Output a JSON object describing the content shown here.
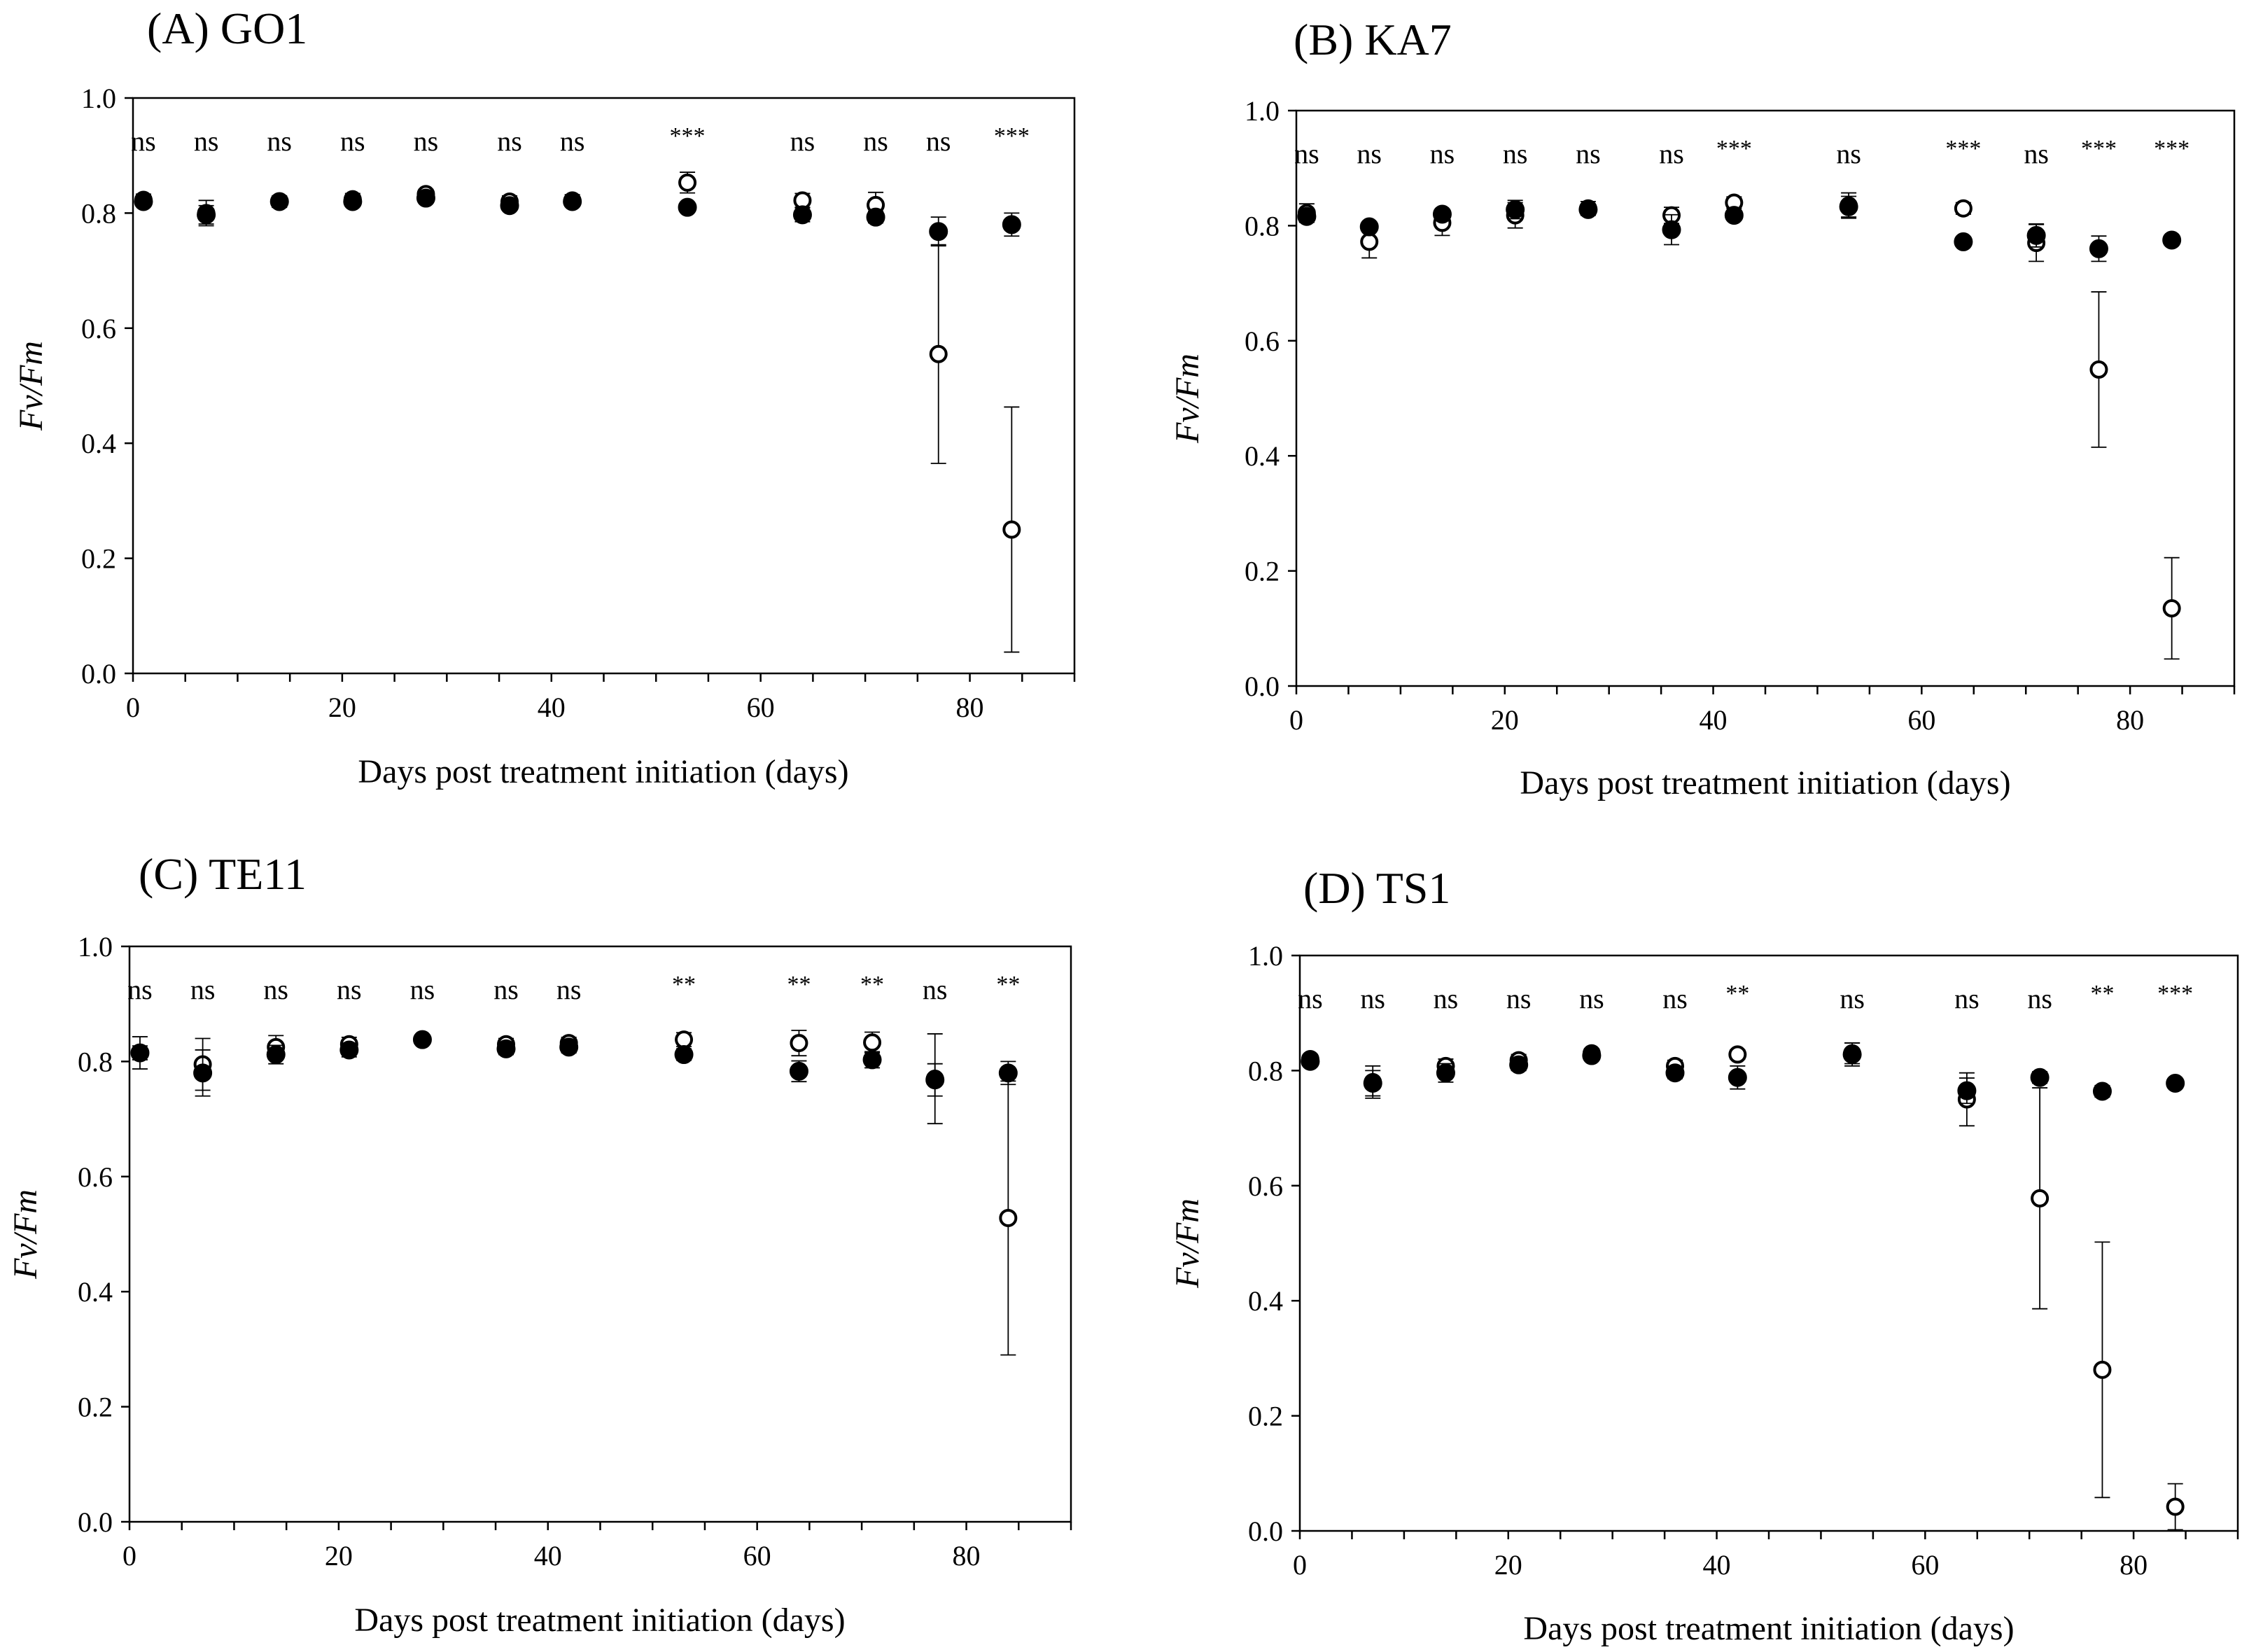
{
  "figure": {
    "x_axis_label": "Days post treatment initiation (days)",
    "y_axis_label": "Fv/Fm",
    "colors": {
      "axis": "#000000",
      "filled_marker": "#000000",
      "open_marker_fill": "#ffffff"
    }
  },
  "chart_data": [
    {
      "type": "scatter",
      "title": "(A) GO1",
      "xlabel": "Days post treatment initiation (days)",
      "ylabel": "Fv/Fm",
      "xlim": [
        0,
        90
      ],
      "ylim": [
        0,
        1
      ],
      "x_ticks": [
        "0",
        "20",
        "40",
        "60",
        "80"
      ],
      "y_ticks": [
        "0.0",
        "0.2",
        "0.4",
        "0.6",
        "0.8",
        "1.0"
      ],
      "x": [
        1,
        7,
        14,
        21,
        28,
        36,
        42,
        53,
        64,
        71,
        77,
        84
      ],
      "significance": [
        "ns",
        "ns",
        "ns",
        "ns",
        "ns",
        "ns",
        "ns",
        "***",
        "ns",
        "ns",
        "ns",
        "***"
      ],
      "series": [
        {
          "name": "open",
          "marker": "open-circle",
          "values": [
            0.823,
            0.8,
            0.82,
            0.824,
            0.833,
            0.82,
            0.822,
            0.853,
            0.822,
            0.814,
            0.555,
            0.25
          ],
          "errors": [
            0.01,
            0.022,
            0.01,
            0.01,
            0.008,
            0.01,
            0.01,
            0.018,
            0.012,
            0.022,
            0.19,
            0.213
          ]
        },
        {
          "name": "filled",
          "marker": "filled-circle",
          "values": [
            0.82,
            0.797,
            0.82,
            0.82,
            0.826,
            0.813,
            0.82,
            0.81,
            0.797,
            0.793,
            0.768,
            0.78
          ],
          "errors": [
            0.006,
            0.016,
            0.006,
            0.006,
            0.006,
            0.008,
            0.006,
            0.006,
            0.012,
            0.01,
            0.025,
            0.02
          ]
        }
      ]
    },
    {
      "type": "scatter",
      "title": "(B) KA7",
      "xlabel": "Days post treatment initiation (days)",
      "ylabel": "Fv/Fm",
      "xlim": [
        0,
        90
      ],
      "ylim": [
        0,
        1
      ],
      "x_ticks": [
        "0",
        "20",
        "40",
        "60",
        "80"
      ],
      "y_ticks": [
        "0.0",
        "0.2",
        "0.4",
        "0.6",
        "0.8",
        "1.0"
      ],
      "x": [
        1,
        7,
        14,
        21,
        28,
        36,
        42,
        53,
        64,
        71,
        77,
        84
      ],
      "significance": [
        "ns",
        "ns",
        "ns",
        "ns",
        "ns",
        "ns",
        "***",
        "ns",
        "***",
        "ns",
        "***",
        "***"
      ],
      "series": [
        {
          "name": "open",
          "marker": "open-circle",
          "values": [
            0.822,
            0.772,
            0.805,
            0.818,
            0.83,
            0.818,
            0.84,
            0.835,
            0.83,
            0.77,
            0.55,
            0.135
          ],
          "errors": [
            0.016,
            0.028,
            0.022,
            0.022,
            0.012,
            0.014,
            0.01,
            0.022,
            0.01,
            0.032,
            0.135,
            0.088
          ]
        },
        {
          "name": "filled",
          "marker": "filled-circle",
          "values": [
            0.816,
            0.798,
            0.82,
            0.828,
            0.828,
            0.793,
            0.818,
            0.833,
            0.772,
            0.783,
            0.76,
            0.775
          ],
          "errors": [
            0.01,
            0.008,
            0.008,
            0.016,
            0.008,
            0.026,
            0.008,
            0.018,
            0.008,
            0.02,
            0.022,
            0.008
          ]
        }
      ]
    },
    {
      "type": "scatter",
      "title": "(C) TE11",
      "xlabel": "Days post treatment initiation (days)",
      "ylabel": "Fv/Fm",
      "xlim": [
        0,
        90
      ],
      "ylim": [
        0,
        1
      ],
      "x_ticks": [
        "0",
        "20",
        "40",
        "60",
        "80"
      ],
      "y_ticks": [
        "0.0",
        "0.2",
        "0.4",
        "0.6",
        "0.8",
        "1.0"
      ],
      "x": [
        1,
        7,
        14,
        21,
        28,
        36,
        42,
        53,
        64,
        71,
        77,
        84
      ],
      "significance": [
        "ns",
        "ns",
        "ns",
        "ns",
        "ns",
        "ns",
        "ns",
        "**",
        "**",
        "**",
        "ns",
        "**"
      ],
      "series": [
        {
          "name": "open",
          "marker": "open-circle",
          "values": [
            0.815,
            0.795,
            0.825,
            0.83,
            0.838,
            0.83,
            0.832,
            0.838,
            0.832,
            0.833,
            0.77,
            0.528
          ],
          "errors": [
            0.028,
            0.045,
            0.02,
            0.012,
            0.008,
            0.01,
            0.01,
            0.012,
            0.022,
            0.018,
            0.078,
            0.238
          ]
        },
        {
          "name": "filled",
          "marker": "filled-circle",
          "values": [
            0.815,
            0.78,
            0.812,
            0.82,
            0.838,
            0.822,
            0.825,
            0.812,
            0.783,
            0.803,
            0.768,
            0.78
          ],
          "errors": [
            0.012,
            0.04,
            0.016,
            0.012,
            0.008,
            0.01,
            0.01,
            0.01,
            0.018,
            0.014,
            0.028,
            0.02
          ]
        }
      ]
    },
    {
      "type": "scatter",
      "title": "(D) TS1",
      "xlabel": "Days post treatment initiation (days)",
      "ylabel": "Fv/Fm",
      "xlim": [
        0,
        90
      ],
      "ylim": [
        0,
        1
      ],
      "x_ticks": [
        "0",
        "20",
        "40",
        "60",
        "80"
      ],
      "y_ticks": [
        "0.0",
        "0.2",
        "0.4",
        "0.6",
        "0.8",
        "1.0"
      ],
      "x": [
        1,
        7,
        14,
        21,
        28,
        36,
        42,
        53,
        64,
        71,
        77,
        84
      ],
      "significance": [
        "ns",
        "ns",
        "ns",
        "ns",
        "ns",
        "ns",
        "**",
        "ns",
        "ns",
        "ns",
        "**",
        "***"
      ],
      "series": [
        {
          "name": "open",
          "marker": "open-circle",
          "values": [
            0.82,
            0.78,
            0.808,
            0.818,
            0.83,
            0.808,
            0.828,
            0.83,
            0.75,
            0.578,
            0.28,
            0.042
          ],
          "errors": [
            0.008,
            0.028,
            0.012,
            0.01,
            0.008,
            0.01,
            0.008,
            0.018,
            0.046,
            0.192,
            0.222,
            0.04
          ]
        },
        {
          "name": "filled",
          "marker": "filled-circle",
          "values": [
            0.816,
            0.778,
            0.796,
            0.81,
            0.826,
            0.796,
            0.788,
            0.828,
            0.765,
            0.788,
            0.764,
            0.778
          ],
          "errors": [
            0.008,
            0.022,
            0.016,
            0.01,
            0.008,
            0.01,
            0.02,
            0.02,
            0.022,
            0.01,
            0.01,
            0.008
          ]
        }
      ]
    }
  ]
}
